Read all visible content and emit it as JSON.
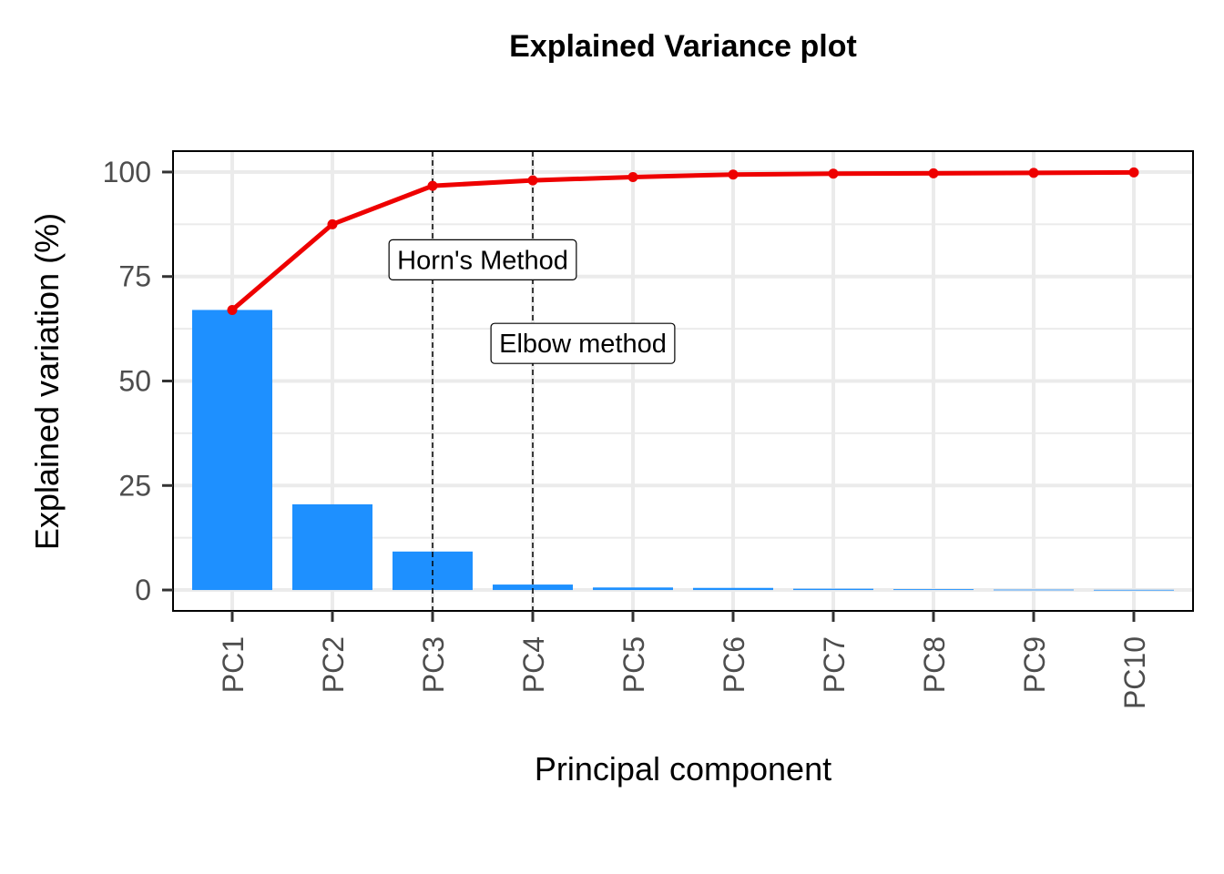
{
  "chart_data": {
    "type": "bar",
    "title": "Explained Variance plot",
    "xlabel": "Principal component",
    "ylabel": "Explained variation (%)",
    "categories": [
      "PC1",
      "PC2",
      "PC3",
      "PC4",
      "PC5",
      "PC6",
      "PC7",
      "PC8",
      "PC9",
      "PC10"
    ],
    "series": [
      {
        "type": "bar",
        "values": [
          67.0,
          20.5,
          9.2,
          1.3,
          0.6,
          0.5,
          0.3,
          0.2,
          0.1,
          0.05
        ],
        "color": "#1E90FF"
      },
      {
        "type": "line",
        "values": [
          67.0,
          87.5,
          96.7,
          98.0,
          98.8,
          99.4,
          99.6,
          99.7,
          99.8,
          99.9
        ],
        "color": "#EE0000"
      }
    ],
    "ylim": [
      -5,
      105
    ],
    "yticks": [
      0,
      25,
      50,
      75,
      100
    ],
    "grid": true,
    "vlines": [
      {
        "at": "PC3",
        "label": "Horn's Method",
        "label_y": 79
      },
      {
        "at": "PC4",
        "label": "Elbow method",
        "label_y": 59
      }
    ]
  }
}
